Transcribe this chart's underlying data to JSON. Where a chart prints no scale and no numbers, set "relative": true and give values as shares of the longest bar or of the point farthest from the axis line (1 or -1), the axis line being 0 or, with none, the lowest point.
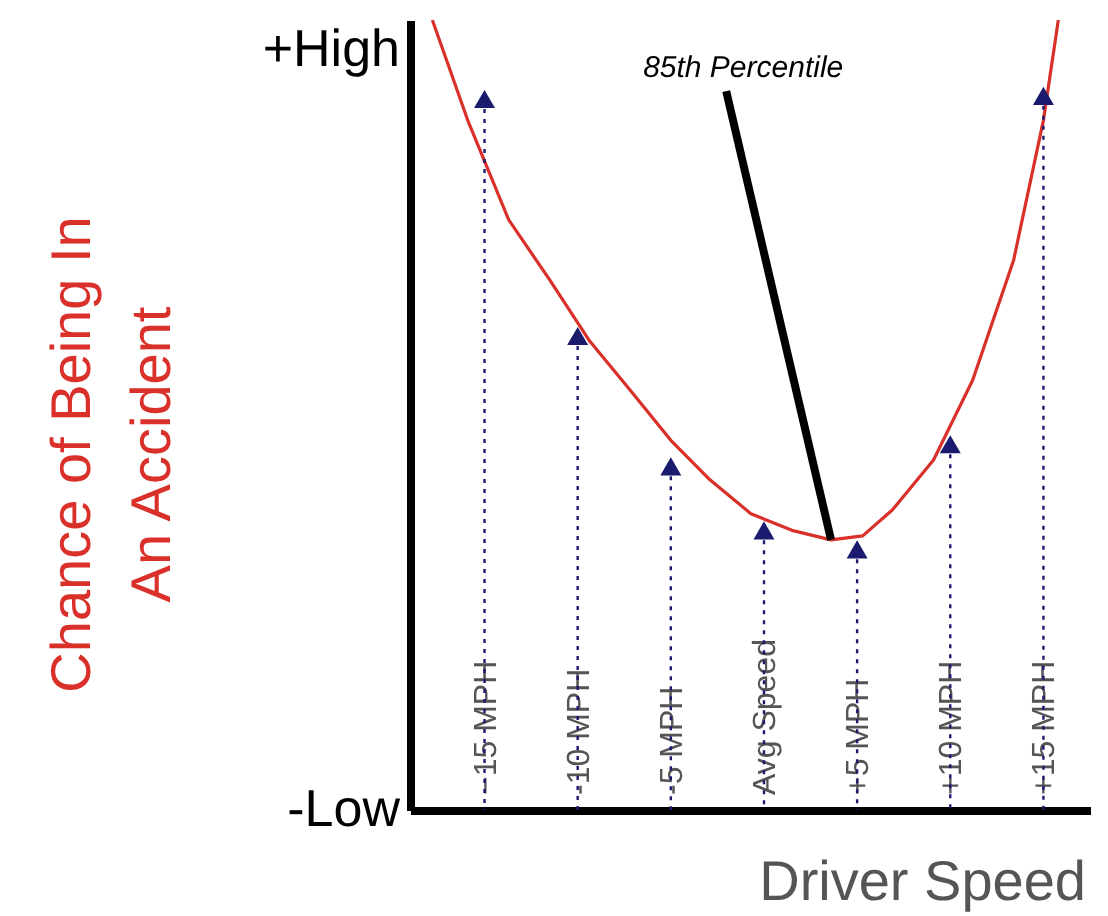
{
  "chart_data": {
    "type": "line",
    "relative": true,
    "xlabel": "Driver Speed",
    "ylabel": "Chance of Being In An Accident",
    "xlim": [
      -19,
      17.5
    ],
    "xticks": [
      {
        "value": -15,
        "label": "−15 MPH"
      },
      {
        "value": -10,
        "label": "-10 MPH"
      },
      {
        "value": -5,
        "label": "-5 MPH"
      },
      {
        "value": 0,
        "label": "Avg Speed"
      },
      {
        "value": 5,
        "label": "+5 MPH"
      },
      {
        "value": 10,
        "label": "+10 MPH"
      },
      {
        "value": 15,
        "label": "+15 MPH"
      }
    ],
    "annotations": [
      "85th Percentile",
      "+High",
      "-Low"
    ],
    "series": [
      {
        "color": "#d9302a",
        "line_style": "solid",
        "marker": "none",
        "x": [
          -17.8,
          -15.9,
          -13.7,
          -11.5,
          -9.4,
          -7.2,
          -5.0,
          -2.9,
          -0.7,
          1.5,
          3.6,
          5.3,
          6.9,
          9.1,
          11.2,
          13.4,
          15.0,
          15.8
        ],
        "values": [
          1,
          0.873,
          0.747,
          0.671,
          0.595,
          0.532,
          0.468,
          0.418,
          0.375,
          0.354,
          0.342,
          0.347,
          0.38,
          0.443,
          0.544,
          0.696,
          0.873,
          1
        ]
      },
      {
        "type": "lollipop",
        "color": "#1a1a6e",
        "line_style": "dotted",
        "marker": "triangle",
        "x": [
          -15,
          -10,
          -5,
          0,
          5,
          10,
          15
        ],
        "values": [
          0.9,
          0.6,
          0.435,
          0.354,
          0.33,
          0.463,
          0.904
        ]
      }
    ]
  }
}
